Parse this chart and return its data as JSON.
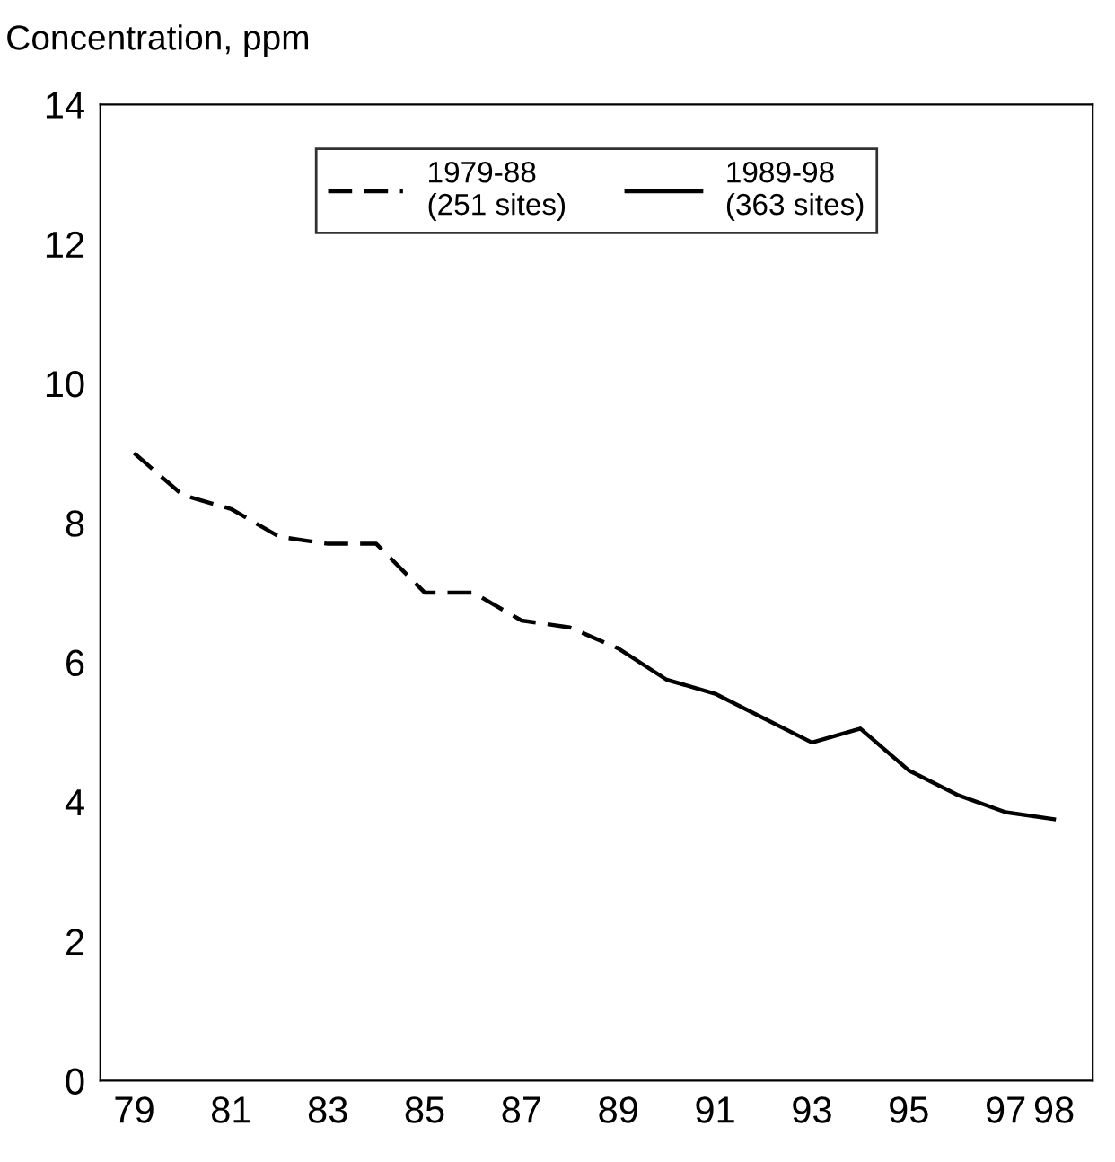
{
  "chart_data": {
    "type": "line",
    "ylabel": "Concentration, ppm",
    "series": [
      {
        "name": "1979-88\n(251 sites)",
        "color": "#000000",
        "line_style": "dashed",
        "x": [
          79,
          80,
          81,
          82,
          83,
          84,
          85,
          86,
          87,
          88,
          89
        ],
        "values": [
          9.0,
          8.4,
          8.2,
          7.8,
          7.7,
          7.7,
          7.0,
          7.0,
          6.6,
          6.5,
          6.2
        ]
      },
      {
        "name": "1989-98\n(363 sites)",
        "color": "#000000",
        "line_style": "solid",
        "x": [
          89,
          90,
          91,
          92,
          93,
          94,
          95,
          96,
          97,
          98
        ],
        "values": [
          6.2,
          5.75,
          5.55,
          5.2,
          4.85,
          5.05,
          4.45,
          4.1,
          3.85,
          3.75
        ]
      }
    ],
    "xlim": [
      78.3,
      98.8
    ],
    "xticks": [
      79,
      81,
      83,
      85,
      87,
      89,
      91,
      93,
      95,
      97,
      98
    ],
    "ylim": [
      0,
      14
    ],
    "yticks": [
      0,
      2,
      4,
      6,
      8,
      10,
      12,
      14
    ],
    "legend": "top",
    "grid": false
  }
}
